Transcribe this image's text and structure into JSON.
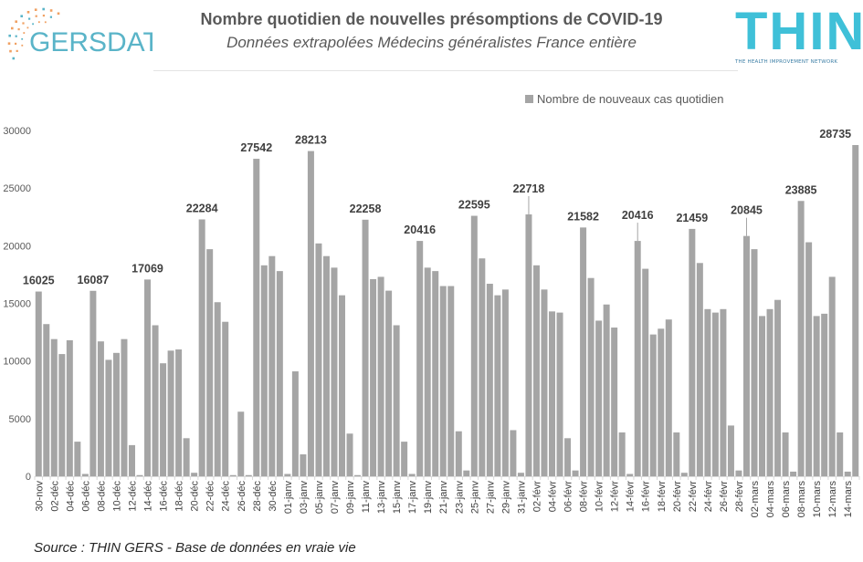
{
  "header": {
    "title": "Nombre quotidien de nouvelles présomptions de COVID-19",
    "subtitle": "Données extrapolées Médecins généralistes France entière"
  },
  "logos": {
    "gers": "GERSDATA",
    "thin": "THIN",
    "thin_tagline": "THE HEALTH IMPROVEMENT NETWORK"
  },
  "source": "Source : THIN GERS - Base de données en vraie vie",
  "colors": {
    "bar": "#a5a5a5",
    "thin_brand": "#3fc0d8",
    "gers_brand": "#f0a062"
  },
  "chart_data": {
    "type": "bar",
    "legend_position": "top-right",
    "grid": false,
    "ylim": [
      0,
      30000
    ],
    "yticks": [
      0,
      5000,
      10000,
      15000,
      20000,
      25000,
      30000
    ],
    "series": [
      {
        "name": "Nombre de nouveaux cas quotidien",
        "values": [
          16025,
          13200,
          11900,
          10600,
          11800,
          3000,
          200,
          16087,
          11700,
          10100,
          10700,
          11900,
          2700,
          100,
          17069,
          13100,
          9800,
          10900,
          11000,
          3300,
          300,
          22284,
          19700,
          15100,
          13400,
          100,
          5600,
          100,
          27542,
          18300,
          19100,
          17800,
          200,
          9100,
          1900,
          28213,
          20200,
          19100,
          18100,
          15700,
          3700,
          100,
          22258,
          17100,
          17300,
          16100,
          13100,
          3000,
          200,
          20416,
          18100,
          17800,
          16500,
          16500,
          3900,
          500,
          22595,
          18900,
          16700,
          15700,
          16200,
          4000,
          300,
          22718,
          18300,
          16200,
          14300,
          14200,
          3300,
          500,
          21582,
          17200,
          13500,
          14900,
          12900,
          3800,
          200,
          20416,
          18000,
          12300,
          12800,
          13600,
          3800,
          300,
          21459,
          18500,
          14500,
          14200,
          14500,
          4400,
          500,
          20845,
          19700,
          13900,
          14500,
          15300,
          3800,
          400,
          23885,
          20300,
          13900,
          14100,
          17300,
          3800,
          400,
          28735
        ]
      }
    ],
    "start_date": "2020-11-30",
    "tick_labels": [
      "30-nov",
      "02-déc",
      "04-déc",
      "06-déc",
      "08-déc",
      "10-déc",
      "12-déc",
      "14-déc",
      "16-déc",
      "18-déc",
      "20-déc",
      "22-déc",
      "24-déc",
      "26-déc",
      "28-déc",
      "30-déc",
      "01-janv",
      "03-janv",
      "05-janv",
      "07-janv",
      "09-janv",
      "11-janv",
      "13-janv",
      "15-janv",
      "17-janv",
      "19-janv",
      "21-janv",
      "23-janv",
      "25-janv",
      "27-janv",
      "29-janv",
      "31-janv",
      "02-févr",
      "04-févr",
      "06-févr",
      "08-févr",
      "10-févr",
      "12-févr",
      "14-févr",
      "16-févr",
      "18-févr",
      "20-févr",
      "22-févr",
      "24-févr",
      "26-févr",
      "28-févr",
      "02-mars",
      "04-mars",
      "06-mars",
      "08-mars",
      "10-mars",
      "12-mars",
      "14-mars"
    ],
    "data_labels": [
      {
        "index": 0,
        "text": "16025"
      },
      {
        "index": 7,
        "text": "16087"
      },
      {
        "index": 14,
        "text": "17069"
      },
      {
        "index": 21,
        "text": "22284"
      },
      {
        "index": 28,
        "text": "27542"
      },
      {
        "index": 35,
        "text": "28213"
      },
      {
        "index": 42,
        "text": "22258"
      },
      {
        "index": 49,
        "text": "20416"
      },
      {
        "index": 56,
        "text": "22595"
      },
      {
        "index": 63,
        "text": "22718"
      },
      {
        "index": 70,
        "text": "21582"
      },
      {
        "index": 77,
        "text": "20416"
      },
      {
        "index": 84,
        "text": "21459"
      },
      {
        "index": 91,
        "text": "20845"
      },
      {
        "index": 98,
        "text": "23885"
      },
      {
        "index": 105,
        "text": "28735"
      }
    ]
  }
}
